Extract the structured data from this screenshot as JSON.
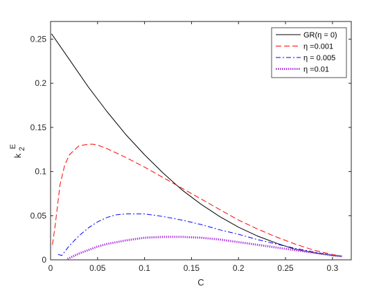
{
  "chart_data": {
    "type": "line",
    "xlabel": "C",
    "ylabel": {
      "main": "k",
      "sup": "E",
      "sub": "2"
    },
    "xlim": [
      0,
      0.32
    ],
    "ylim": [
      0,
      0.27
    ],
    "xticks": [
      0,
      0.05,
      0.1,
      0.15,
      0.2,
      0.25,
      0.3
    ],
    "xtick_labels": [
      "0",
      "0.05",
      "0.1",
      "0.15",
      "0.2",
      "0.25",
      "0.3"
    ],
    "yticks": [
      0,
      0.05,
      0.1,
      0.15,
      0.2,
      0.25
    ],
    "ytick_labels": [
      "0",
      "0.05",
      "0.1",
      "0.15",
      "0.2",
      "0.25"
    ],
    "grid": false,
    "legend_position": "top-right",
    "series": [
      {
        "name": "GR(η = 0)",
        "color": "#000000",
        "style": "solid",
        "x": [
          0.001,
          0.02,
          0.04,
          0.06,
          0.08,
          0.1,
          0.12,
          0.14,
          0.16,
          0.18,
          0.2,
          0.22,
          0.24,
          0.26,
          0.28,
          0.3,
          0.31
        ],
        "y": [
          0.256,
          0.227,
          0.196,
          0.168,
          0.142,
          0.119,
          0.098,
          0.079,
          0.063,
          0.049,
          0.037,
          0.027,
          0.019,
          0.012,
          0.008,
          0.005,
          0.004
        ]
      },
      {
        "name": "η =0.001",
        "color": "#ff0000",
        "style": "dashed",
        "x": [
          0.002,
          0.005,
          0.01,
          0.015,
          0.02,
          0.03,
          0.04,
          0.045,
          0.05,
          0.06,
          0.08,
          0.1,
          0.12,
          0.14,
          0.16,
          0.18,
          0.2,
          0.22,
          0.24,
          0.26,
          0.28,
          0.3,
          0.31
        ],
        "y": [
          0.017,
          0.04,
          0.085,
          0.107,
          0.119,
          0.129,
          0.131,
          0.131,
          0.13,
          0.126,
          0.116,
          0.105,
          0.093,
          0.081,
          0.069,
          0.057,
          0.045,
          0.035,
          0.026,
          0.018,
          0.011,
          0.006,
          0.004
        ]
      },
      {
        "name": "η = 0.005",
        "color": "#0000ff",
        "style": "dashdot",
        "x": [
          0.008,
          0.012,
          0.02,
          0.03,
          0.04,
          0.05,
          0.06,
          0.07,
          0.08,
          0.09,
          0.1,
          0.12,
          0.14,
          0.16,
          0.18,
          0.2,
          0.22,
          0.24,
          0.26,
          0.28,
          0.3,
          0.31
        ],
        "y": [
          0.006,
          0.005,
          0.016,
          0.027,
          0.036,
          0.043,
          0.048,
          0.051,
          0.052,
          0.052,
          0.052,
          0.049,
          0.045,
          0.04,
          0.034,
          0.029,
          0.023,
          0.018,
          0.013,
          0.009,
          0.005,
          0.004
        ]
      },
      {
        "name": "η =0.01",
        "color": "#b040e0",
        "style": "dotted",
        "x": [
          0.018,
          0.022,
          0.03,
          0.04,
          0.05,
          0.06,
          0.08,
          0.1,
          0.12,
          0.13,
          0.14,
          0.16,
          0.18,
          0.2,
          0.22,
          0.24,
          0.26,
          0.28,
          0.3,
          0.31
        ],
        "y": [
          0.001,
          0.003,
          0.007,
          0.011,
          0.015,
          0.018,
          0.022,
          0.025,
          0.026,
          0.026,
          0.026,
          0.025,
          0.023,
          0.02,
          0.017,
          0.014,
          0.011,
          0.008,
          0.005,
          0.004
        ]
      }
    ]
  }
}
